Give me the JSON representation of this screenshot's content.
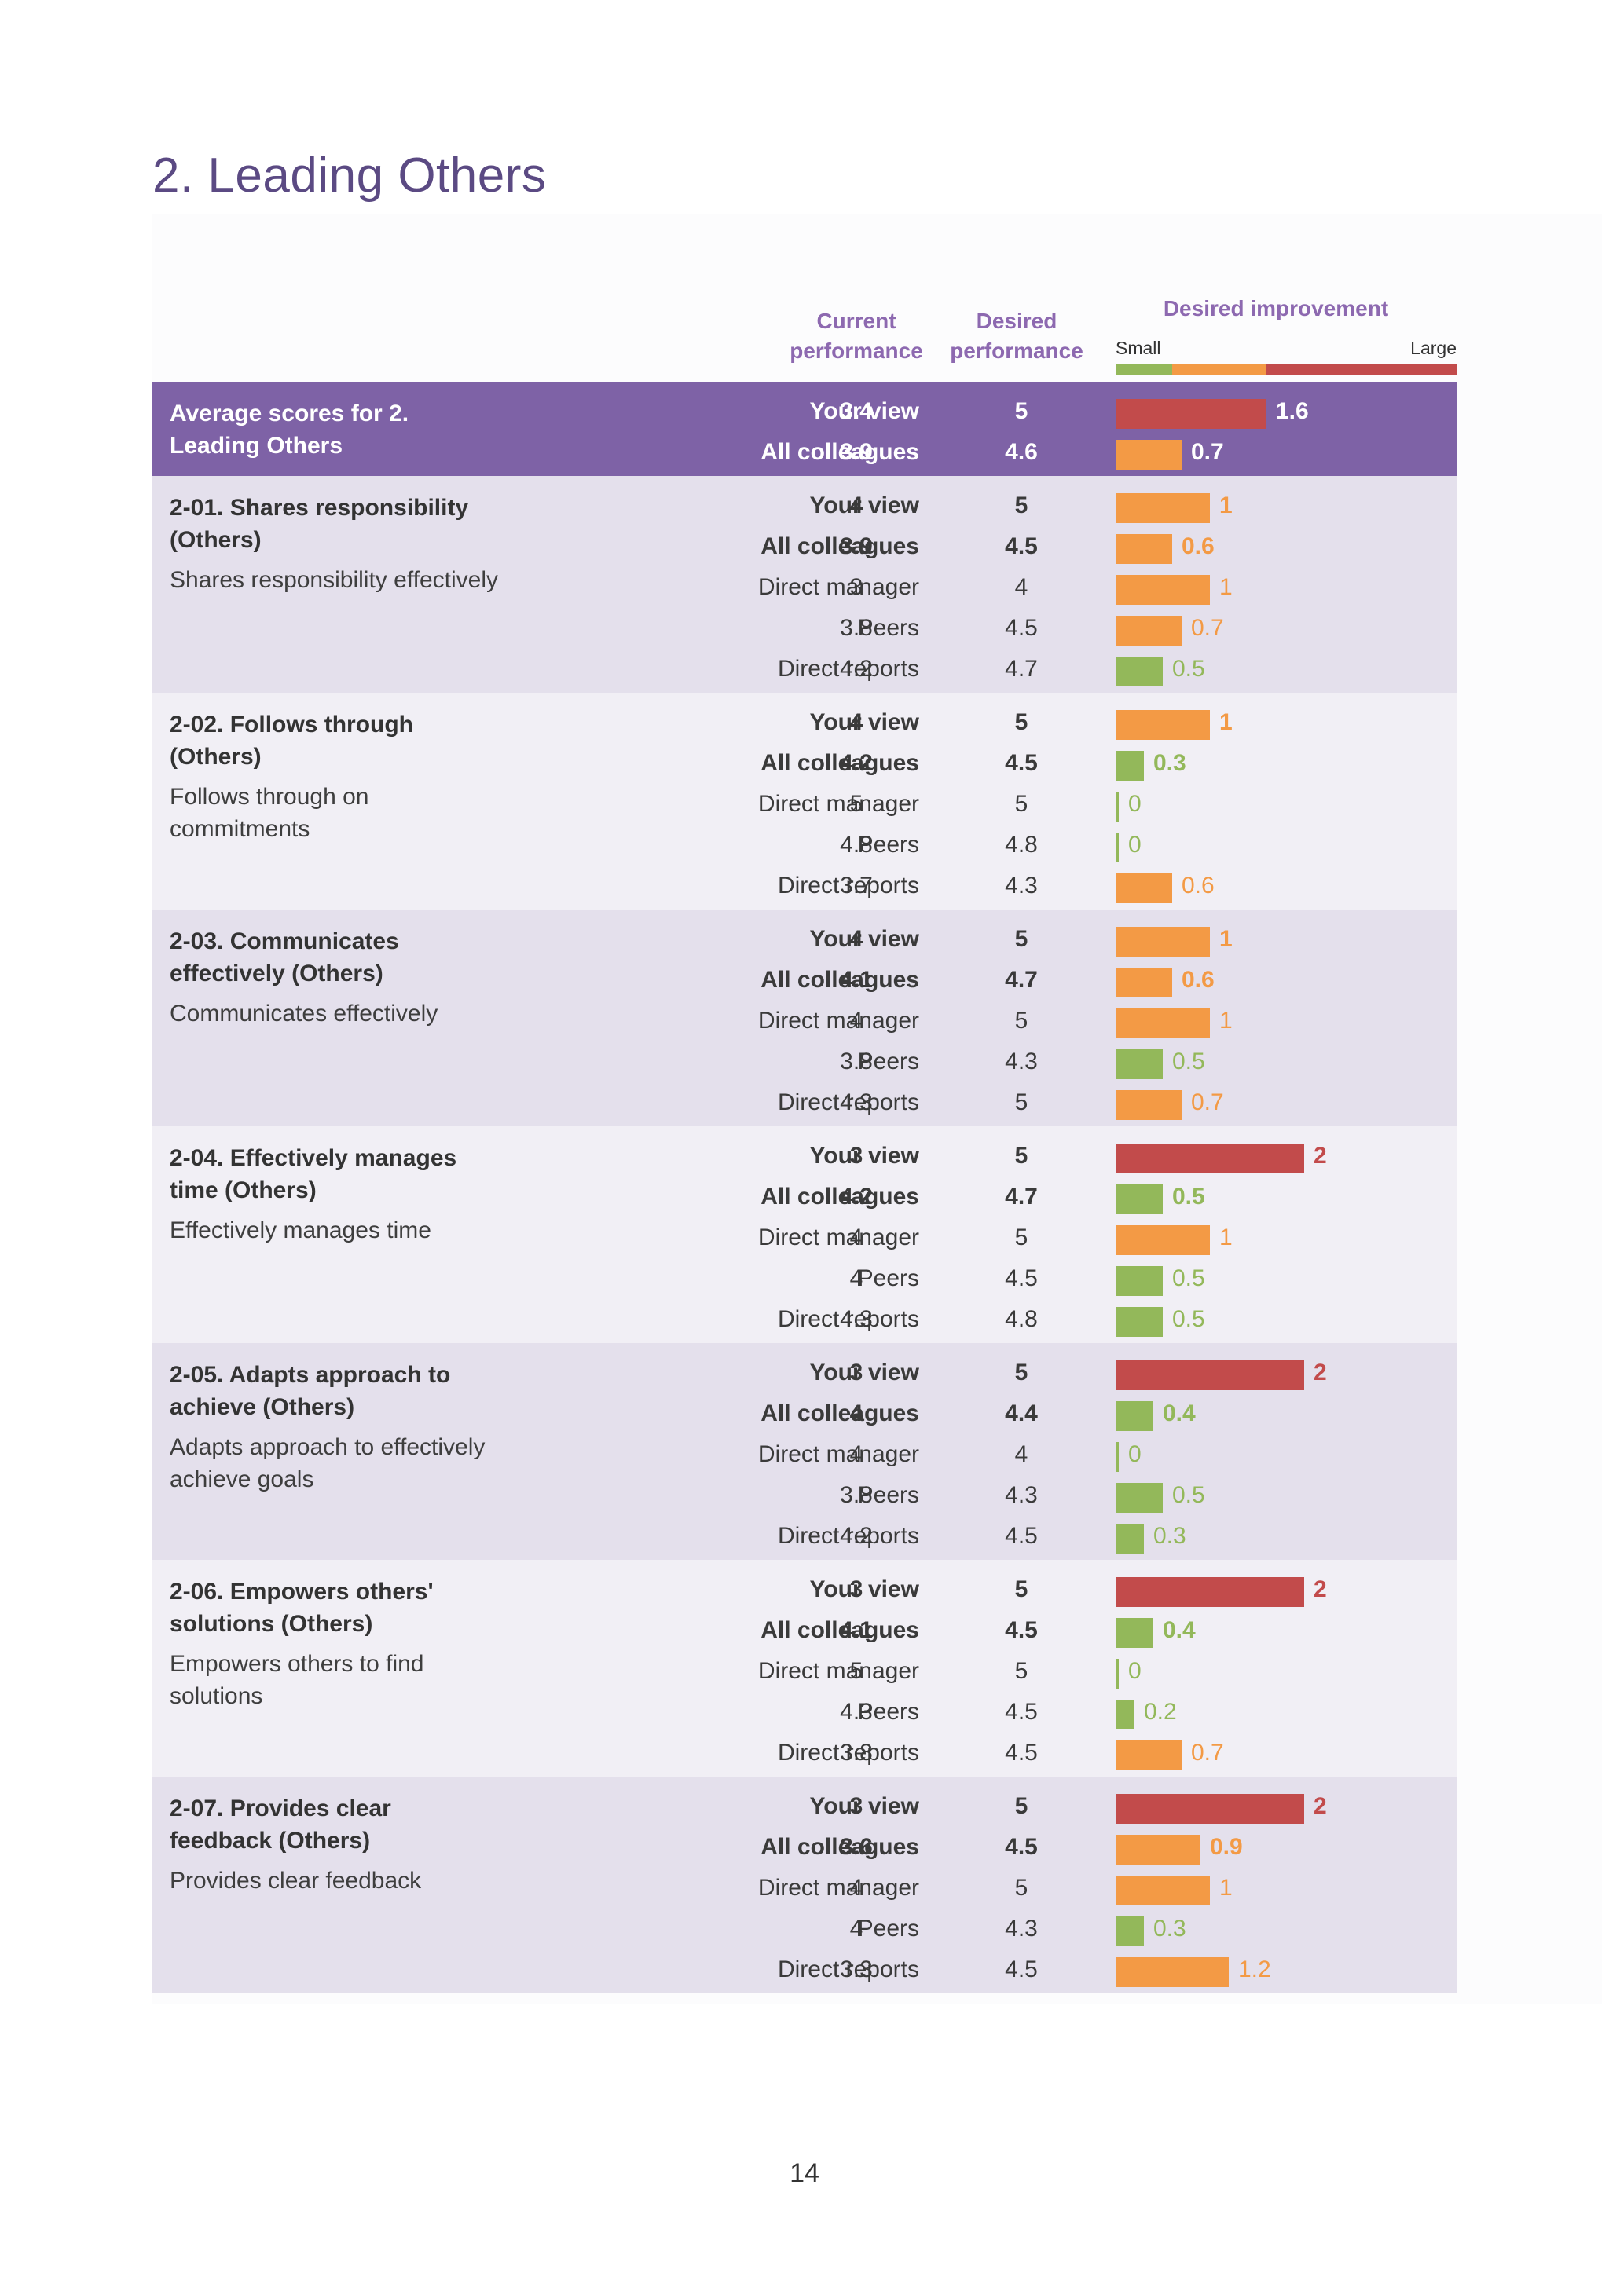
{
  "page_title": "2. Leading Others",
  "header": {
    "current_col": [
      "Current",
      "performance"
    ],
    "desired_col": [
      "Desired",
      "performance"
    ],
    "improvement_col": "Desired improvement",
    "scale_small": "Small",
    "scale_large": "Large"
  },
  "colors": {
    "purple": "#7e62a6",
    "title_purple": "#5b4a83",
    "small": "#93b85a",
    "medium": "#f39a45",
    "large": "#c24b4b"
  },
  "average": {
    "title": "Average scores for 2. Leading Others",
    "rows": [
      {
        "label": "Your view",
        "current": "3.4",
        "desired": "5",
        "improvement": "1.6",
        "bold": true
      },
      {
        "label": "All colleagues",
        "current": "3.9",
        "desired": "4.6",
        "improvement": "0.7",
        "bold": true
      }
    ]
  },
  "competencies": [
    {
      "title": "2-01. Shares responsibility (Others)",
      "description": "Shares responsibility effectively",
      "rows": [
        {
          "label": "Your view",
          "current": "4",
          "desired": "5",
          "improvement": "1",
          "bold": true
        },
        {
          "label": "All colleagues",
          "current": "3.9",
          "desired": "4.5",
          "improvement": "0.6",
          "bold": true
        },
        {
          "label": "Direct manager",
          "current": "3",
          "desired": "4",
          "improvement": "1",
          "bold": false
        },
        {
          "label": "Peers",
          "current": "3.8",
          "desired": "4.5",
          "improvement": "0.7",
          "bold": false
        },
        {
          "label": "Direct reports",
          "current": "4.2",
          "desired": "4.7",
          "improvement": "0.5",
          "bold": false
        }
      ]
    },
    {
      "title": "2-02. Follows through (Others)",
      "description": "Follows through on commitments",
      "rows": [
        {
          "label": "Your view",
          "current": "4",
          "desired": "5",
          "improvement": "1",
          "bold": true
        },
        {
          "label": "All colleagues",
          "current": "4.2",
          "desired": "4.5",
          "improvement": "0.3",
          "bold": true
        },
        {
          "label": "Direct manager",
          "current": "5",
          "desired": "5",
          "improvement": "0",
          "bold": false
        },
        {
          "label": "Peers",
          "current": "4.8",
          "desired": "4.8",
          "improvement": "0",
          "bold": false
        },
        {
          "label": "Direct reports",
          "current": "3.7",
          "desired": "4.3",
          "improvement": "0.6",
          "bold": false
        }
      ]
    },
    {
      "title": "2-03. Communicates effectively (Others)",
      "description": "Communicates effectively",
      "rows": [
        {
          "label": "Your view",
          "current": "4",
          "desired": "5",
          "improvement": "1",
          "bold": true
        },
        {
          "label": "All colleagues",
          "current": "4.1",
          "desired": "4.7",
          "improvement": "0.6",
          "bold": true
        },
        {
          "label": "Direct manager",
          "current": "4",
          "desired": "5",
          "improvement": "1",
          "bold": false
        },
        {
          "label": "Peers",
          "current": "3.8",
          "desired": "4.3",
          "improvement": "0.5",
          "bold": false
        },
        {
          "label": "Direct reports",
          "current": "4.3",
          "desired": "5",
          "improvement": "0.7",
          "bold": false
        }
      ]
    },
    {
      "title": "2-04. Effectively manages time (Others)",
      "description": "Effectively manages time",
      "rows": [
        {
          "label": "Your view",
          "current": "3",
          "desired": "5",
          "improvement": "2",
          "bold": true
        },
        {
          "label": "All colleagues",
          "current": "4.2",
          "desired": "4.7",
          "improvement": "0.5",
          "bold": true
        },
        {
          "label": "Direct manager",
          "current": "4",
          "desired": "5",
          "improvement": "1",
          "bold": false
        },
        {
          "label": "Peers",
          "current": "4",
          "desired": "4.5",
          "improvement": "0.5",
          "bold": false
        },
        {
          "label": "Direct reports",
          "current": "4.3",
          "desired": "4.8",
          "improvement": "0.5",
          "bold": false
        }
      ]
    },
    {
      "title": "2-05. Adapts approach to achieve (Others)",
      "description": "Adapts approach to effectively achieve goals",
      "rows": [
        {
          "label": "Your view",
          "current": "3",
          "desired": "5",
          "improvement": "2",
          "bold": true
        },
        {
          "label": "All colleagues",
          "current": "4",
          "desired": "4.4",
          "improvement": "0.4",
          "bold": true
        },
        {
          "label": "Direct manager",
          "current": "4",
          "desired": "4",
          "improvement": "0",
          "bold": false
        },
        {
          "label": "Peers",
          "current": "3.8",
          "desired": "4.3",
          "improvement": "0.5",
          "bold": false
        },
        {
          "label": "Direct reports",
          "current": "4.2",
          "desired": "4.5",
          "improvement": "0.3",
          "bold": false
        }
      ]
    },
    {
      "title": "2-06. Empowers others' solutions (Others)",
      "description": "Empowers others to find solutions",
      "rows": [
        {
          "label": "Your view",
          "current": "3",
          "desired": "5",
          "improvement": "2",
          "bold": true
        },
        {
          "label": "All colleagues",
          "current": "4.1",
          "desired": "4.5",
          "improvement": "0.4",
          "bold": true
        },
        {
          "label": "Direct manager",
          "current": "5",
          "desired": "5",
          "improvement": "0",
          "bold": false
        },
        {
          "label": "Peers",
          "current": "4.3",
          "desired": "4.5",
          "improvement": "0.2",
          "bold": false
        },
        {
          "label": "Direct reports",
          "current": "3.8",
          "desired": "4.5",
          "improvement": "0.7",
          "bold": false
        }
      ]
    },
    {
      "title": "2-07. Provides clear feedback (Others)",
      "description": "Provides clear feedback",
      "rows": [
        {
          "label": "Your view",
          "current": "3",
          "desired": "5",
          "improvement": "2",
          "bold": true
        },
        {
          "label": "All colleagues",
          "current": "3.6",
          "desired": "4.5",
          "improvement": "0.9",
          "bold": true
        },
        {
          "label": "Direct manager",
          "current": "4",
          "desired": "5",
          "improvement": "1",
          "bold": false
        },
        {
          "label": "Peers",
          "current": "4",
          "desired": "4.3",
          "improvement": "0.3",
          "bold": false
        },
        {
          "label": "Direct reports",
          "current": "3.3",
          "desired": "4.5",
          "improvement": "1.2",
          "bold": false
        }
      ]
    }
  ],
  "page_number": "14"
}
